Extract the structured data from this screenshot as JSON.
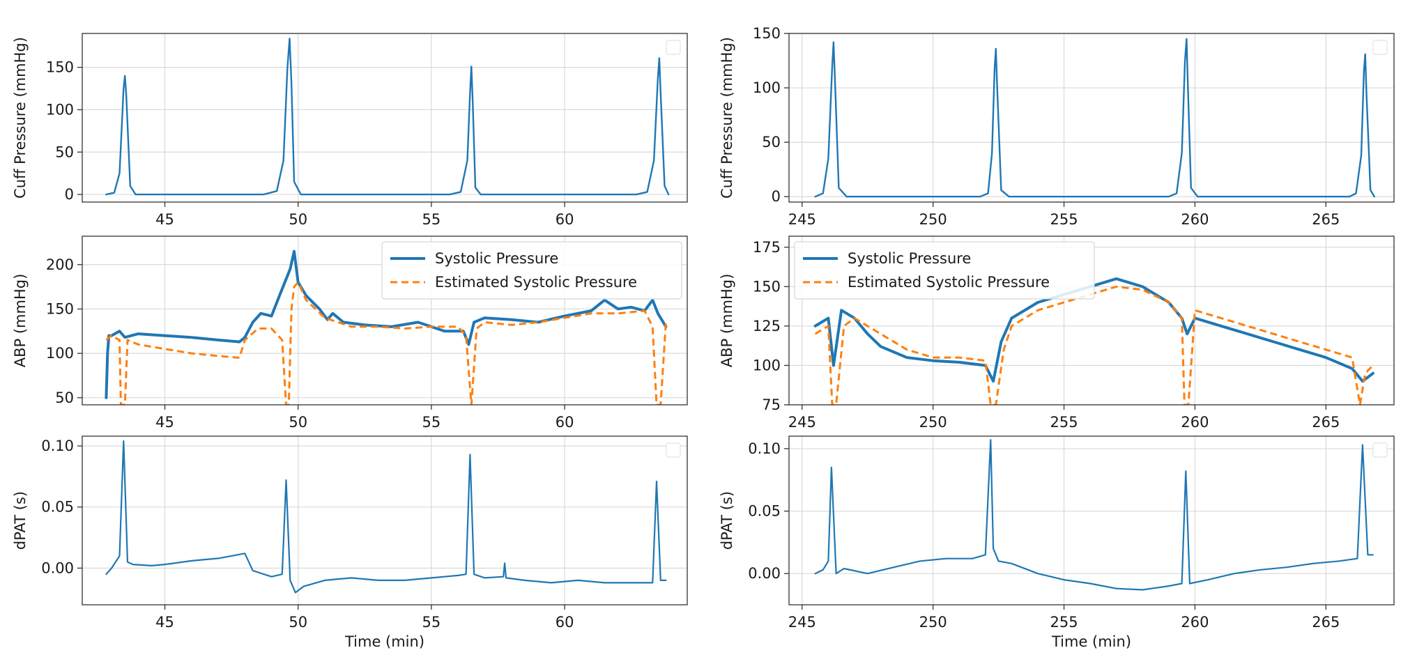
{
  "colors": {
    "systolic": "#1f77b4",
    "estimated": "#ff7f0e"
  },
  "chart_data": [
    {
      "panel": "left-top",
      "type": "line",
      "ylabel": "Cuff Pressure (mmHg)",
      "xlabel": "",
      "xlim": [
        41.9,
        64.6
      ],
      "ylim": [
        -9,
        190
      ],
      "xticks": [
        45,
        50,
        55,
        60
      ],
      "yticks": [
        0,
        50,
        100,
        150
      ],
      "grid": true,
      "legend": "top-right (empty)",
      "series": [
        {
          "name": "Cuff Pressure",
          "color": "#1f77b4",
          "width": 2.4,
          "dash": "",
          "x": [
            42.8,
            43.1,
            43.3,
            43.45,
            43.5,
            43.55,
            43.7,
            43.9,
            48.7,
            49.2,
            49.45,
            49.6,
            49.68,
            49.75,
            49.85,
            50.1,
            55.7,
            56.1,
            56.35,
            56.45,
            56.5,
            56.55,
            56.65,
            56.85,
            62.7,
            63.1,
            63.35,
            63.5,
            63.55,
            63.6,
            63.75,
            63.9
          ],
          "y": [
            0,
            2,
            25,
            125,
            140,
            118,
            10,
            0,
            0,
            4,
            40,
            150,
            184,
            130,
            15,
            0,
            0,
            3,
            40,
            120,
            151,
            110,
            8,
            0,
            0,
            3,
            40,
            138,
            161,
            120,
            10,
            0
          ]
        }
      ]
    },
    {
      "panel": "right-top",
      "type": "line",
      "ylabel": "Cuff Pressure (mmHg)",
      "xlabel": "",
      "xlim": [
        244.5,
        267.6
      ],
      "ylim": [
        -5,
        150
      ],
      "xticks": [
        245,
        250,
        255,
        260,
        265
      ],
      "yticks": [
        0,
        50,
        100,
        150
      ],
      "grid": true,
      "legend": "top-right (empty)",
      "series": [
        {
          "name": "Cuff Pressure",
          "color": "#1f77b4",
          "width": 2.4,
          "dash": "",
          "x": [
            245.5,
            245.8,
            246.0,
            246.15,
            246.2,
            246.25,
            246.4,
            246.7,
            251.8,
            252.1,
            252.25,
            252.35,
            252.4,
            252.45,
            252.6,
            252.9,
            259.0,
            259.3,
            259.5,
            259.62,
            259.68,
            259.72,
            259.85,
            260.1,
            265.9,
            266.15,
            266.35,
            266.45,
            266.5,
            266.55,
            266.7,
            266.85
          ],
          "y": [
            0,
            3,
            35,
            120,
            142,
            110,
            8,
            0,
            0,
            3,
            40,
            118,
            136,
            100,
            6,
            0,
            0,
            3,
            40,
            125,
            145,
            110,
            8,
            0,
            0,
            3,
            38,
            115,
            131,
            95,
            6,
            0
          ]
        }
      ]
    },
    {
      "panel": "left-middle",
      "type": "line",
      "ylabel": "ABP (mmHg)",
      "xlabel": "",
      "xlim": [
        41.9,
        64.6
      ],
      "ylim": [
        42,
        232
      ],
      "xticks": [
        45,
        50,
        55,
        60
      ],
      "yticks": [
        50,
        100,
        150,
        200
      ],
      "grid": true,
      "legend": "top-right",
      "series": [
        {
          "name": "Systolic Pressure",
          "color": "#1f77b4",
          "width": 4,
          "dash": "",
          "x": [
            42.8,
            42.85,
            42.9,
            43.0,
            43.3,
            43.5,
            44.0,
            45.0,
            46.0,
            47.0,
            47.8,
            48.0,
            48.3,
            48.6,
            49.0,
            49.3,
            49.5,
            49.7,
            49.85,
            50.0,
            50.3,
            50.8,
            51.1,
            51.3,
            51.7,
            52.5,
            53.5,
            54.5,
            55.5,
            56.2,
            56.4,
            56.6,
            57.0,
            58.0,
            59.0,
            60.0,
            61.0,
            61.5,
            62.0,
            62.5,
            63.0,
            63.3,
            63.5,
            63.8
          ],
          "y": [
            50,
            100,
            120,
            120,
            125,
            118,
            122,
            120,
            118,
            115,
            113,
            118,
            135,
            145,
            142,
            165,
            180,
            195,
            215,
            180,
            165,
            150,
            138,
            145,
            135,
            132,
            130,
            135,
            125,
            125,
            110,
            135,
            140,
            138,
            135,
            142,
            148,
            160,
            150,
            152,
            148,
            160,
            145,
            130
          ]
        },
        {
          "name": "Estimated Systolic Pressure",
          "color": "#ff7f0e",
          "width": 3,
          "dash": "10 6",
          "x": [
            42.8,
            43.0,
            43.3,
            43.35,
            43.5,
            43.6,
            44.0,
            45.0,
            46.0,
            47.0,
            47.8,
            48.0,
            48.5,
            49.0,
            49.4,
            49.55,
            49.65,
            49.75,
            49.85,
            50.0,
            50.3,
            51.0,
            52.0,
            53.0,
            54.0,
            55.0,
            56.0,
            56.3,
            56.5,
            56.7,
            57.0,
            58.0,
            59.0,
            60.0,
            61.0,
            62.0,
            63.0,
            63.3,
            63.45,
            63.6,
            63.8
          ],
          "y": [
            115,
            120,
            115,
            42,
            42,
            115,
            110,
            105,
            100,
            97,
            95,
            115,
            128,
            128,
            115,
            42,
            42,
            150,
            175,
            180,
            160,
            140,
            130,
            130,
            128,
            130,
            130,
            120,
            42,
            128,
            135,
            132,
            135,
            140,
            145,
            145,
            148,
            130,
            42,
            42,
            135
          ]
        }
      ]
    },
    {
      "panel": "right-middle",
      "type": "line",
      "ylabel": "ABP (mmHg)",
      "xlabel": "",
      "xlim": [
        244.5,
        267.6
      ],
      "ylim": [
        75,
        182
      ],
      "xticks": [
        245,
        250,
        255,
        260,
        265
      ],
      "yticks": [
        75,
        100,
        125,
        150,
        175
      ],
      "grid": true,
      "legend": "top-left",
      "series": [
        {
          "name": "Systolic Pressure",
          "color": "#1f77b4",
          "width": 4,
          "dash": "",
          "x": [
            245.5,
            246.0,
            246.2,
            246.5,
            247.0,
            247.5,
            248.0,
            249.0,
            250.0,
            251.0,
            252.0,
            252.3,
            252.6,
            253.0,
            254.0,
            255.0,
            256.0,
            257.0,
            258.0,
            259.0,
            259.5,
            259.7,
            260.0,
            261.0,
            262.0,
            263.0,
            264.0,
            265.0,
            266.0,
            266.4,
            266.8
          ],
          "y": [
            125,
            130,
            100,
            135,
            130,
            120,
            112,
            105,
            103,
            102,
            100,
            90,
            115,
            130,
            140,
            145,
            150,
            155,
            150,
            140,
            130,
            120,
            130,
            125,
            120,
            115,
            110,
            105,
            98,
            90,
            95
          ]
        },
        {
          "name": "Estimated Systolic Pressure",
          "color": "#ff7f0e",
          "width": 3,
          "dash": "10 6",
          "x": [
            245.5,
            246.0,
            246.15,
            246.3,
            246.6,
            247.0,
            248.0,
            249.0,
            250.0,
            251.0,
            252.0,
            252.2,
            252.4,
            252.7,
            253.0,
            254.0,
            255.0,
            256.0,
            257.0,
            258.0,
            259.0,
            259.5,
            259.6,
            259.75,
            260.0,
            261.0,
            262.0,
            263.0,
            264.0,
            265.0,
            266.0,
            266.3,
            266.5,
            266.8
          ],
          "y": [
            120,
            125,
            75,
            75,
            125,
            130,
            120,
            110,
            105,
            105,
            103,
            75,
            75,
            110,
            125,
            135,
            140,
            145,
            150,
            148,
            140,
            130,
            75,
            75,
            135,
            130,
            125,
            120,
            115,
            110,
            105,
            75,
            95,
            100
          ]
        }
      ]
    },
    {
      "panel": "left-bottom",
      "type": "line",
      "ylabel": "dPAT (s)",
      "xlabel": "Time (min)",
      "xlim": [
        41.9,
        64.6
      ],
      "ylim": [
        -0.03,
        0.108
      ],
      "xticks": [
        45,
        50,
        55,
        60
      ],
      "yticks": [
        0.0,
        0.05,
        0.1
      ],
      "ytick_labels": [
        "0.00",
        "0.05",
        "0.10"
      ],
      "grid": true,
      "legend": "top-right (empty)",
      "series": [
        {
          "name": "dPAT",
          "color": "#1f77b4",
          "width": 2.2,
          "dash": "",
          "x": [
            42.8,
            43.0,
            43.3,
            43.45,
            43.6,
            43.8,
            44.5,
            45.0,
            46.0,
            47.0,
            47.5,
            48.0,
            48.3,
            49.0,
            49.4,
            49.55,
            49.7,
            49.9,
            50.2,
            51.0,
            52.0,
            53.0,
            54.0,
            55.0,
            56.0,
            56.3,
            56.45,
            56.6,
            57.0,
            57.7,
            57.75,
            57.8,
            58.5,
            59.5,
            60.5,
            61.5,
            62.5,
            63.3,
            63.45,
            63.6,
            63.8
          ],
          "y": [
            -0.005,
            0.0,
            0.01,
            0.104,
            0.005,
            0.003,
            0.002,
            0.003,
            0.006,
            0.008,
            0.01,
            0.012,
            -0.002,
            -0.007,
            -0.005,
            0.072,
            -0.01,
            -0.02,
            -0.015,
            -0.01,
            -0.008,
            -0.01,
            -0.01,
            -0.008,
            -0.006,
            -0.005,
            0.093,
            -0.005,
            -0.008,
            -0.007,
            0.004,
            -0.008,
            -0.01,
            -0.012,
            -0.01,
            -0.012,
            -0.012,
            -0.012,
            0.071,
            -0.01,
            -0.01
          ]
        }
      ]
    },
    {
      "panel": "right-bottom",
      "type": "line",
      "ylabel": "dPAT (s)",
      "xlabel": "Time (min)",
      "xlim": [
        244.5,
        267.6
      ],
      "ylim": [
        -0.025,
        0.11
      ],
      "xticks": [
        245,
        250,
        255,
        260,
        265
      ],
      "yticks": [
        0.0,
        0.05,
        0.1
      ],
      "ytick_labels": [
        "0.00",
        "0.05",
        "0.10"
      ],
      "grid": true,
      "legend": "top-right (empty)",
      "series": [
        {
          "name": "dPAT",
          "color": "#1f77b4",
          "width": 2.2,
          "dash": "",
          "x": [
            245.5,
            245.8,
            246.0,
            246.12,
            246.3,
            246.6,
            247.5,
            248.5,
            249.5,
            250.5,
            251.5,
            252.0,
            252.2,
            252.3,
            252.5,
            253.0,
            254.0,
            255.0,
            256.0,
            257.0,
            258.0,
            259.0,
            259.5,
            259.65,
            259.8,
            260.5,
            261.5,
            262.5,
            263.5,
            264.5,
            265.5,
            266.2,
            266.4,
            266.6,
            266.8
          ],
          "y": [
            0.0,
            0.003,
            0.01,
            0.085,
            0.0,
            0.004,
            0.0,
            0.005,
            0.01,
            0.012,
            0.012,
            0.015,
            0.107,
            0.02,
            0.01,
            0.008,
            0.0,
            -0.005,
            -0.008,
            -0.012,
            -0.013,
            -0.01,
            -0.008,
            0.082,
            -0.008,
            -0.005,
            0.0,
            0.003,
            0.005,
            0.008,
            0.01,
            0.012,
            0.103,
            0.015,
            0.015
          ]
        }
      ]
    }
  ]
}
